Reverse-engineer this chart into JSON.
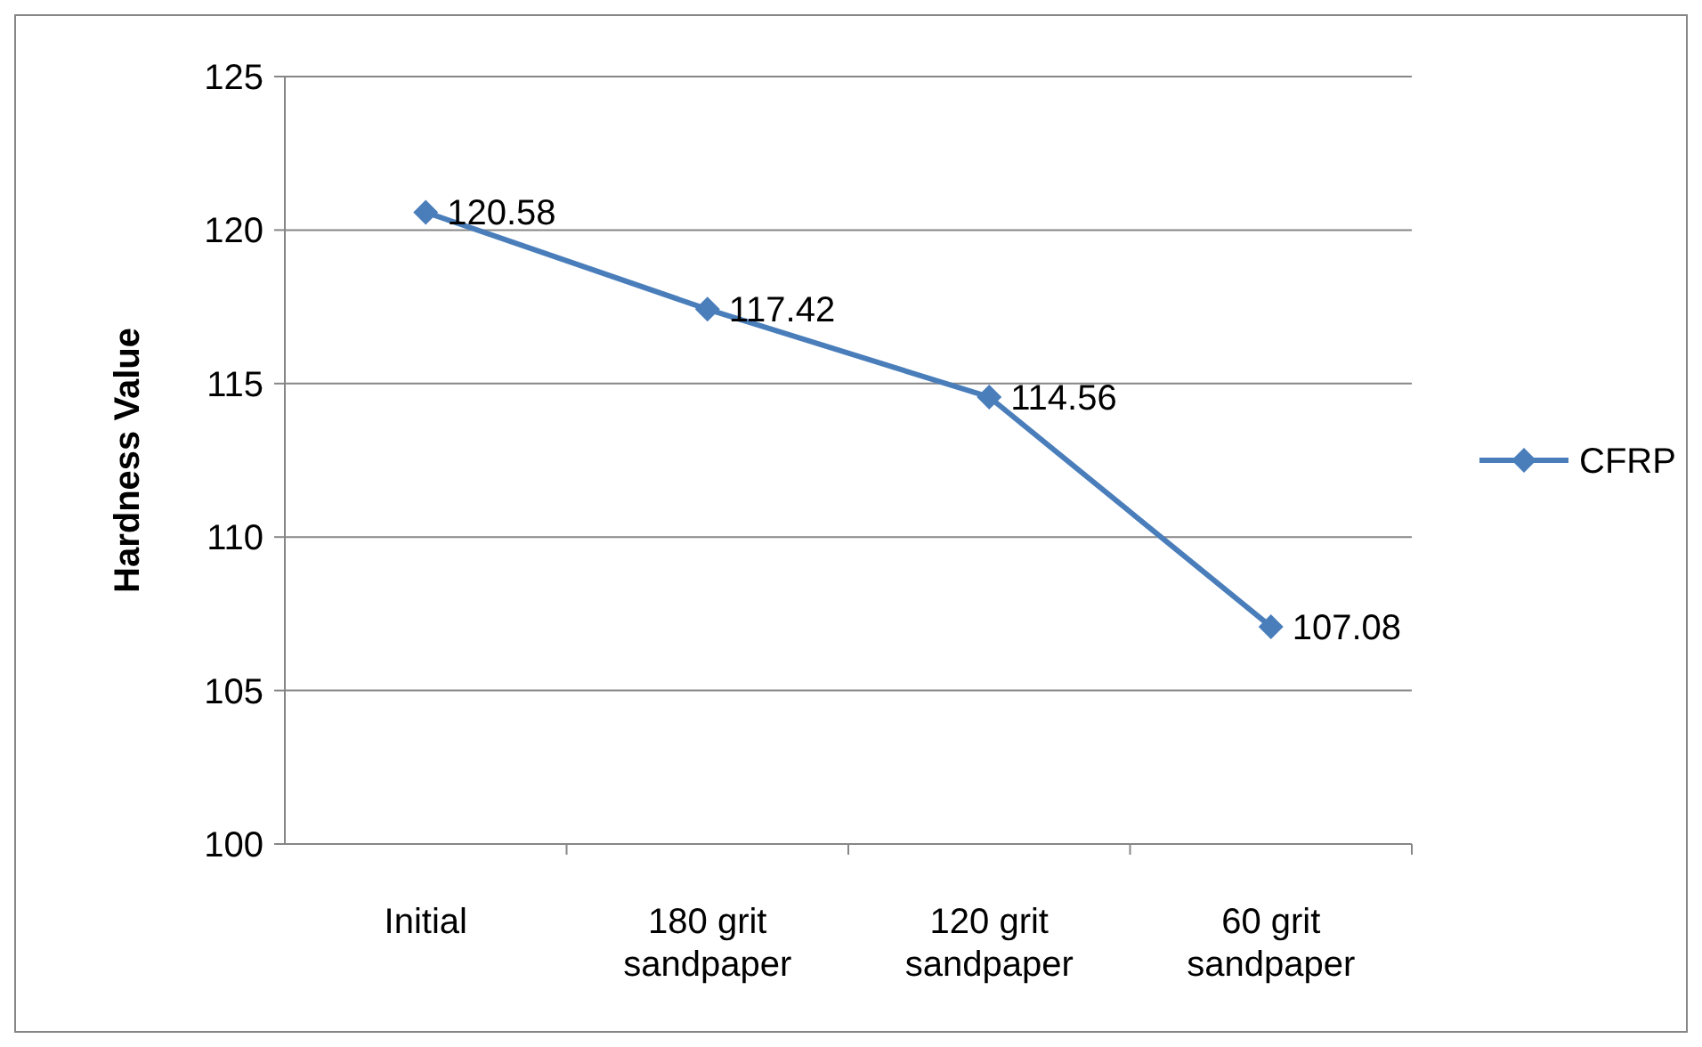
{
  "chart_data": {
    "type": "line",
    "ylabel": "Hardness Value",
    "categories": [
      "Initial",
      "180 grit sandpaper",
      "120 grit sandpaper",
      "60 grit sandpaper"
    ],
    "series": [
      {
        "name": "CFRP",
        "color": "#4a7ebb",
        "values": [
          120.58,
          117.42,
          114.56,
          107.08
        ]
      }
    ],
    "ylim": [
      100,
      125
    ],
    "yticks": [
      100,
      105,
      110,
      115,
      120,
      125
    ],
    "grid": "y",
    "legend": "right",
    "marker": "diamond",
    "line_style": "solid",
    "data_labels": true
  }
}
